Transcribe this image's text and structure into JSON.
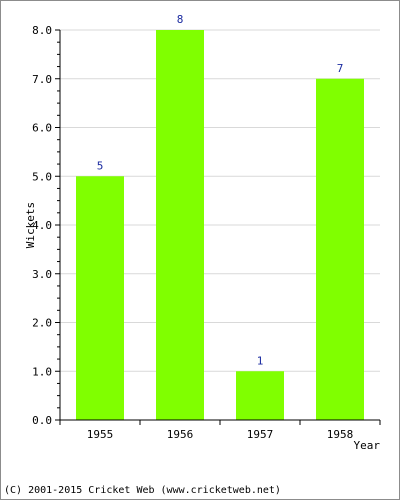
{
  "chart_data": {
    "type": "bar",
    "categories": [
      "1955",
      "1956",
      "1957",
      "1958"
    ],
    "values": [
      5,
      8,
      1,
      7
    ],
    "data_labels": [
      "5",
      "8",
      "1",
      "7"
    ],
    "y_ticks": [
      "0.0",
      "1.0",
      "2.0",
      "3.0",
      "4.0",
      "5.0",
      "6.0",
      "7.0",
      "8.0"
    ],
    "title": "",
    "xlabel": "Year",
    "ylabel": "Wickets",
    "ylim": [
      0,
      8
    ],
    "grid": true,
    "legend": "none",
    "bar_color": "#80ff00",
    "label_color": "#1a2aa0"
  },
  "footer": {
    "text": "(C) 2001-2015 Cricket Web (www.cricketweb.net)"
  }
}
